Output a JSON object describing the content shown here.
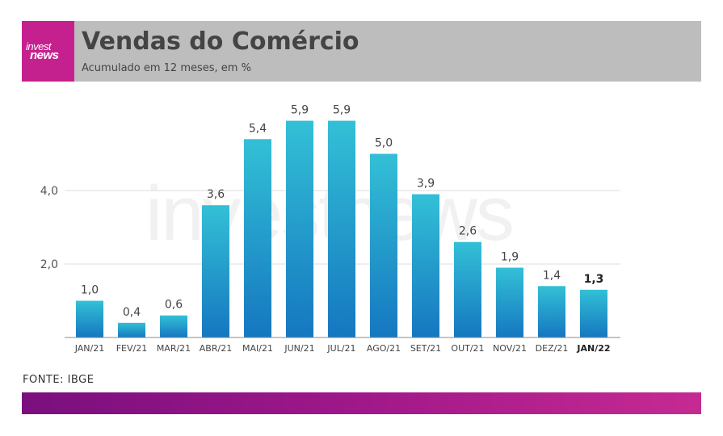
{
  "brand": {
    "logo_line1": "invest",
    "logo_line2": "news",
    "watermark": "investnews",
    "accent": "#c4218e"
  },
  "header": {
    "title": "Vendas do Comércio",
    "subtitle": "Acumulado em 12 meses, em %"
  },
  "source": "FONTE: IBGE",
  "chart_data": {
    "type": "bar",
    "categories": [
      "JAN/21",
      "FEV/21",
      "MAR/21",
      "ABR/21",
      "MAI/21",
      "JUN/21",
      "JUL/21",
      "AGO/21",
      "SET/21",
      "OUT/21",
      "NOV/21",
      "DEZ/21",
      "JAN/22"
    ],
    "values": [
      1.0,
      0.4,
      0.6,
      3.6,
      5.4,
      5.9,
      5.9,
      5.0,
      3.9,
      2.6,
      1.9,
      1.4,
      1.3
    ],
    "value_labels": [
      "1,0",
      "0,4",
      "0,6",
      "3,6",
      "5,4",
      "5,9",
      "5,9",
      "5,0",
      "3,9",
      "2,6",
      "1,9",
      "1,4",
      "1,3"
    ],
    "yticks": [
      2.0,
      4.0
    ],
    "ytick_labels": [
      "2,0",
      "4,0"
    ],
    "ylim": [
      0,
      6
    ],
    "highlight_index": 12,
    "grid": true,
    "bar_color_top": "#33c0d6",
    "bar_color_bottom": "#1577c0"
  }
}
